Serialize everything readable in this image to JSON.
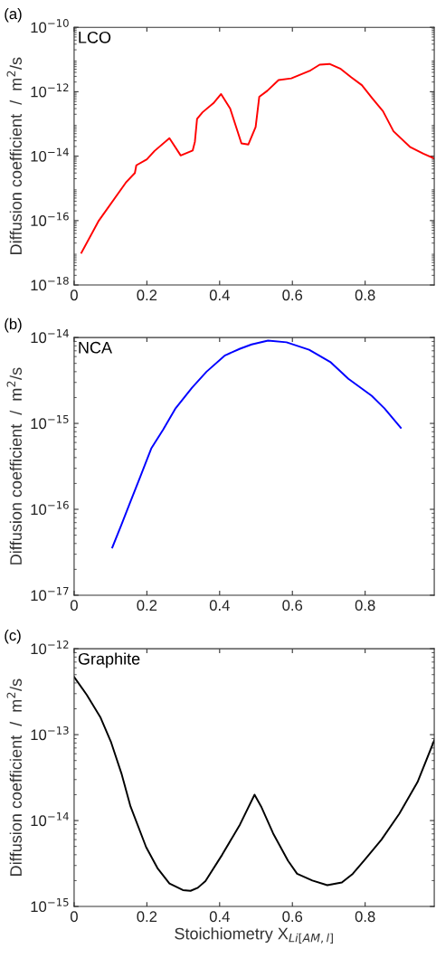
{
  "chart_data": [
    {
      "type": "line",
      "title": "(a)",
      "ylabel": "Diffusion coefficient  /  m$^{2}$/s",
      "annotations": [
        "LCO"
      ],
      "log": "y",
      "grid": false,
      "legend": false,
      "xlim": [
        0,
        0.99
      ],
      "xticks": [
        0,
        0.2,
        0.4,
        0.6,
        0.8
      ],
      "ylim": [
        1e-18,
        1e-10
      ],
      "yticks": [
        {
          "value": 1e-18,
          "label": "10$^{−18}$"
        },
        {
          "value": 1e-16,
          "label": "10$^{−16}$"
        },
        {
          "value": 1e-14,
          "label": "10$^{−14}$"
        },
        {
          "value": 1e-12,
          "label": "10$^{−12}$"
        },
        {
          "value": 1e-10,
          "label": "10$^{−10}$"
        }
      ],
      "series": [
        {
          "color": "#ff0000",
          "x": [
            0.02,
            0.068,
            0.142,
            0.167,
            0.171,
            0.2,
            0.221,
            0.262,
            0.293,
            0.326,
            0.332,
            0.338,
            0.353,
            0.383,
            0.404,
            0.429,
            0.46,
            0.479,
            0.499,
            0.509,
            0.531,
            0.562,
            0.597,
            0.65,
            0.675,
            0.702,
            0.733,
            0.762,
            0.791,
            0.82,
            0.849,
            0.878,
            0.923,
            0.96,
            0.99
          ],
          "values": [
            1e-17,
            1e-16,
            1.5e-15,
            3e-15,
            5.2e-15,
            8e-15,
            1.45e-14,
            3.6e-14,
            1.05e-14,
            1.5e-14,
            2.8e-14,
            1.45e-13,
            2.3e-13,
            4.4e-13,
            8.5e-13,
            3e-13,
            2.5e-14,
            2.3e-14,
            8e-14,
            7e-13,
            1.07e-12,
            2.3e-12,
            2.6e-12,
            4.6e-12,
            6.9e-12,
            7.3e-12,
            5.1e-12,
            2.8e-12,
            1.6e-12,
            6.2e-13,
            2.5e-13,
            5.9e-14,
            1.95e-14,
            1.2e-14,
            8.5e-15
          ]
        }
      ]
    },
    {
      "type": "line",
      "title": "(b)",
      "ylabel": "Diffusion coefficient  /  m$^{2}$/s",
      "annotations": [
        "NCA"
      ],
      "log": "y",
      "grid": false,
      "legend": false,
      "xlim": [
        0,
        0.99
      ],
      "xticks": [
        0,
        0.2,
        0.4,
        0.6,
        0.8
      ],
      "ylim": [
        1e-17,
        1e-14
      ],
      "yticks": [
        {
          "value": 1e-17,
          "label": "10$^{−17}$"
        },
        {
          "value": 1e-16,
          "label": "10$^{−16}$"
        },
        {
          "value": 1e-15,
          "label": "10$^{−15}$"
        },
        {
          "value": 1e-14,
          "label": "10$^{−14}$"
        }
      ],
      "series": [
        {
          "color": "#0000ff",
          "x": [
            0.105,
            0.13,
            0.155,
            0.182,
            0.212,
            0.245,
            0.279,
            0.324,
            0.364,
            0.415,
            0.456,
            0.488,
            0.533,
            0.584,
            0.646,
            0.704,
            0.754,
            0.818,
            0.853,
            0.898
          ],
          "values": [
            3.6e-17,
            6.6e-17,
            1.23e-16,
            2.4e-16,
            5.1e-16,
            8.5e-16,
            1.5e-15,
            2.6e-15,
            4e-15,
            6.2e-15,
            7.4e-15,
            8.3e-15,
            9.2e-15,
            8.8e-15,
            7.2e-15,
            5.2e-15,
            3.3e-15,
            2.1e-15,
            1.5e-15,
            8.9e-16
          ]
        }
      ]
    },
    {
      "type": "line",
      "title": "(c)",
      "xlabel": "Stoichiometry X$_{Li[AM,l]}$",
      "ylabel": "Diffusion coefficient  /  m$^{2}$/s",
      "annotations": [
        "Graphite"
      ],
      "log": "y",
      "grid": false,
      "legend": false,
      "xlim": [
        0,
        0.99
      ],
      "xticks": [
        0,
        0.2,
        0.4,
        0.6,
        0.8
      ],
      "ylim": [
        1e-15,
        1e-12
      ],
      "yticks": [
        {
          "value": 1e-15,
          "label": "10$^{−15}$"
        },
        {
          "value": 1e-14,
          "label": "10$^{−14}$"
        },
        {
          "value": 1e-13,
          "label": "10$^{−13}$"
        },
        {
          "value": 1e-12,
          "label": "10$^{−12}$"
        }
      ],
      "series": [
        {
          "color": "#000000",
          "x": [
            0,
            0.035,
            0.072,
            0.101,
            0.13,
            0.155,
            0.198,
            0.229,
            0.262,
            0.299,
            0.32,
            0.34,
            0.361,
            0.407,
            0.456,
            0.496,
            0.514,
            0.547,
            0.588,
            0.613,
            0.655,
            0.696,
            0.736,
            0.766,
            0.799,
            0.845,
            0.894,
            0.944,
            0.99
          ],
          "values": [
            4.7e-13,
            2.9e-13,
            1.6e-13,
            8.3e-14,
            3.55e-14,
            1.46e-14,
            4.9e-15,
            2.8e-15,
            1.85e-15,
            1.55e-15,
            1.52e-15,
            1.65e-15,
            1.97e-15,
            4e-15,
            9e-15,
            2e-14,
            1.46e-14,
            7.1e-15,
            3.4e-15,
            2.4e-15,
            2e-15,
            1.77e-15,
            1.9e-15,
            2.4e-15,
            3.5e-15,
            6e-15,
            1.2e-14,
            2.8e-14,
            8.6e-14
          ]
        }
      ]
    }
  ]
}
